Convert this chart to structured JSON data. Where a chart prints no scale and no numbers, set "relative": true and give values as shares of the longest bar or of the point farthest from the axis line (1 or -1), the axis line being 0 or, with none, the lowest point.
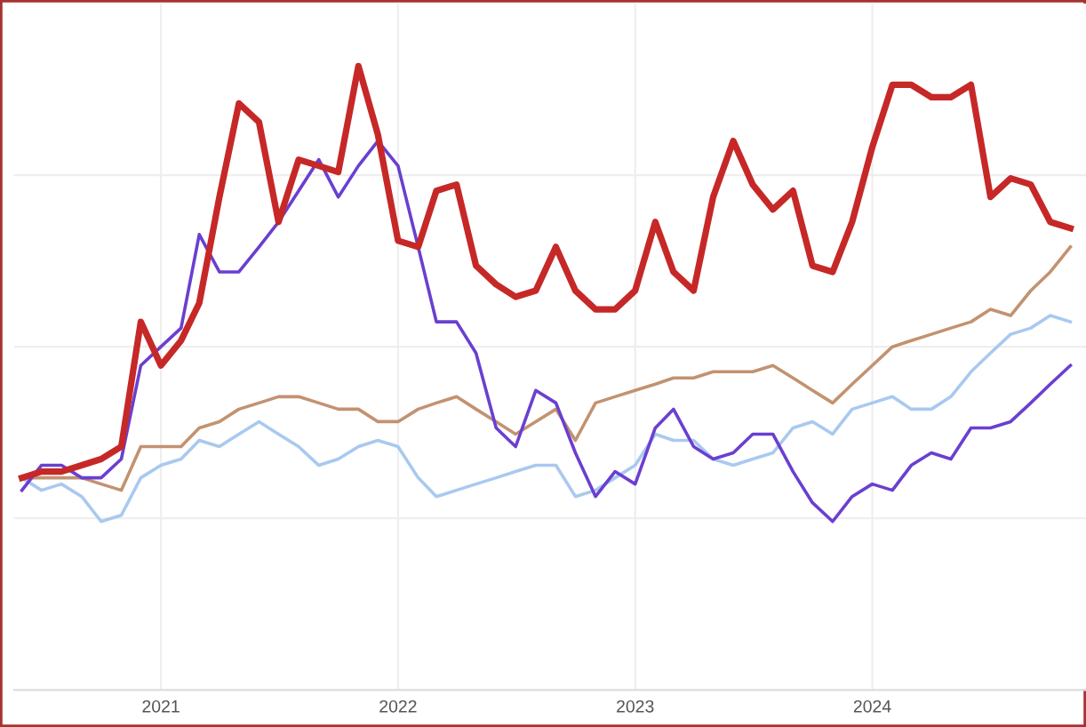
{
  "chart_data": {
    "type": "line",
    "relative": true,
    "grid": true,
    "marker": "none",
    "line_style": "solid",
    "x": [
      "2020-06",
      "2020-07",
      "2020-08",
      "2020-09",
      "2020-10",
      "2020-11",
      "2020-12",
      "2021-01",
      "2021-02",
      "2021-03",
      "2021-04",
      "2021-05",
      "2021-06",
      "2021-07",
      "2021-08",
      "2021-09",
      "2021-10",
      "2021-11",
      "2021-12",
      "2022-01",
      "2022-02",
      "2022-03",
      "2022-04",
      "2022-05",
      "2022-06",
      "2022-07",
      "2022-08",
      "2022-09",
      "2022-10",
      "2022-11",
      "2022-12",
      "2023-01",
      "2023-02",
      "2023-03",
      "2023-04",
      "2023-05",
      "2023-06",
      "2023-07",
      "2023-08",
      "2023-09",
      "2023-10",
      "2023-11",
      "2023-12",
      "2024-01",
      "2024-02",
      "2024-03",
      "2024-04",
      "2024-05",
      "2024-06",
      "2024-07",
      "2024-08",
      "2024-09",
      "2024-10",
      "2024-11"
    ],
    "xlim": [
      "2020-05-20",
      "2024-11-25"
    ],
    "xticks": [
      "2021",
      "2022",
      "2023",
      "2024"
    ],
    "series": [
      {
        "color": "#a9c9ef",
        "values": [
          0.34,
          0.32,
          0.33,
          0.31,
          0.27,
          0.28,
          0.34,
          0.36,
          0.37,
          0.4,
          0.39,
          0.41,
          0.43,
          0.41,
          0.39,
          0.36,
          0.37,
          0.39,
          0.4,
          0.39,
          0.34,
          0.31,
          0.32,
          0.33,
          0.34,
          0.35,
          0.36,
          0.36,
          0.31,
          0.32,
          0.34,
          0.36,
          0.41,
          0.4,
          0.4,
          0.37,
          0.36,
          0.37,
          0.38,
          0.42,
          0.43,
          0.41,
          0.45,
          0.46,
          0.47,
          0.45,
          0.45,
          0.47,
          0.51,
          0.54,
          0.57,
          0.58,
          0.6,
          0.59
        ]
      },
      {
        "color": "#c39270",
        "values": [
          0.34,
          0.34,
          0.34,
          0.34,
          0.33,
          0.32,
          0.39,
          0.39,
          0.39,
          0.42,
          0.43,
          0.45,
          0.46,
          0.47,
          0.47,
          0.46,
          0.45,
          0.45,
          0.43,
          0.43,
          0.45,
          0.46,
          0.47,
          0.45,
          0.43,
          0.41,
          0.43,
          0.45,
          0.4,
          0.46,
          0.47,
          0.48,
          0.49,
          0.5,
          0.5,
          0.51,
          0.51,
          0.51,
          0.52,
          0.5,
          0.48,
          0.46,
          0.49,
          0.52,
          0.55,
          0.56,
          0.57,
          0.58,
          0.59,
          0.61,
          0.6,
          0.64,
          0.67,
          0.71
        ]
      },
      {
        "color": "#6a3fd0",
        "values": [
          0.32,
          0.36,
          0.36,
          0.34,
          0.34,
          0.37,
          0.52,
          0.55,
          0.58,
          0.73,
          0.67,
          0.67,
          0.71,
          0.75,
          0.8,
          0.85,
          0.79,
          0.84,
          0.88,
          0.84,
          0.71,
          0.59,
          0.59,
          0.54,
          0.42,
          0.39,
          0.48,
          0.46,
          0.38,
          0.31,
          0.35,
          0.33,
          0.42,
          0.45,
          0.39,
          0.37,
          0.38,
          0.41,
          0.41,
          0.35,
          0.3,
          0.27,
          0.31,
          0.33,
          0.32,
          0.36,
          0.38,
          0.37,
          0.42,
          0.42,
          0.43,
          0.46,
          0.49,
          0.52
        ]
      },
      {
        "color": "#c62828",
        "values": [
          0.34,
          0.35,
          0.35,
          0.36,
          0.37,
          0.39,
          0.59,
          0.52,
          0.56,
          0.62,
          0.79,
          0.94,
          0.91,
          0.75,
          0.85,
          0.84,
          0.83,
          1.0,
          0.89,
          0.72,
          0.71,
          0.8,
          0.81,
          0.68,
          0.65,
          0.63,
          0.64,
          0.71,
          0.64,
          0.61,
          0.61,
          0.64,
          0.75,
          0.67,
          0.64,
          0.79,
          0.88,
          0.81,
          0.77,
          0.8,
          0.68,
          0.67,
          0.75,
          0.87,
          0.97,
          0.97,
          0.95,
          0.95,
          0.97,
          0.79,
          0.82,
          0.81,
          0.75,
          0.74
        ]
      }
    ]
  }
}
